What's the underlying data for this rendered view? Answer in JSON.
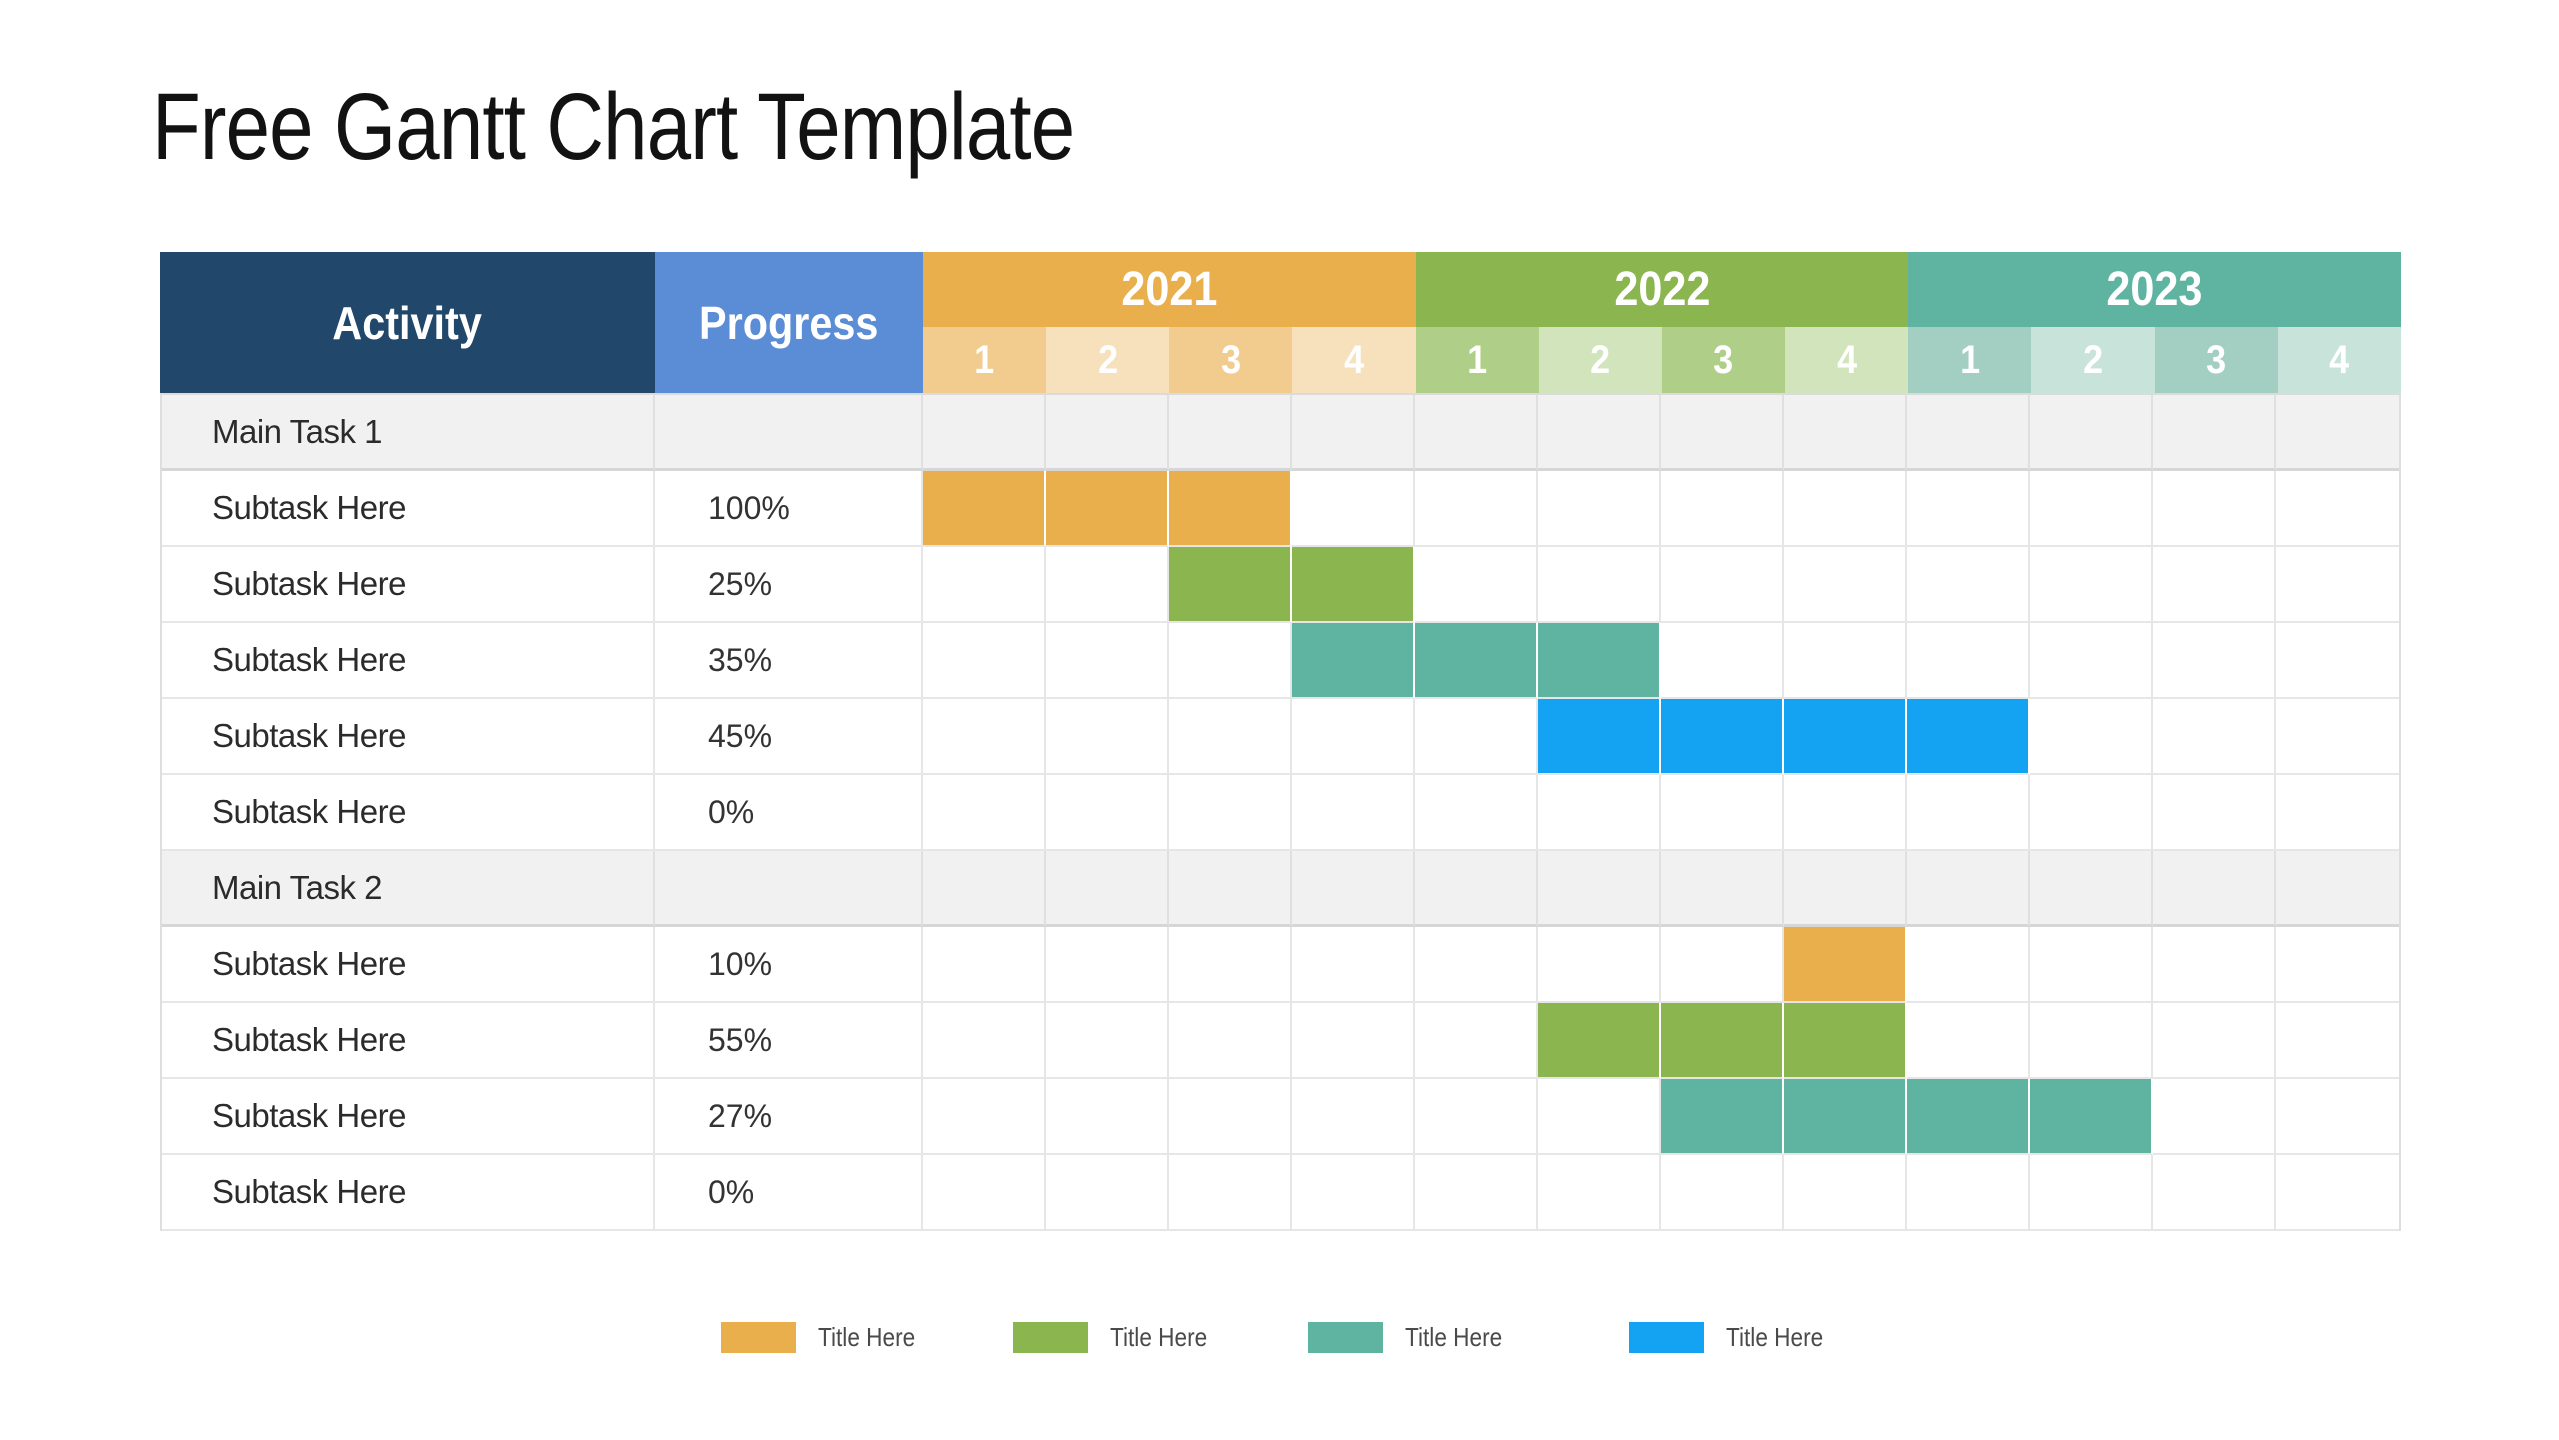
{
  "page": {
    "title": "Free Gantt Chart Template",
    "background": "#FFFFFF"
  },
  "table": {
    "activity_header": "Activity",
    "progress_header": "Progress",
    "years": [
      {
        "label": "2021",
        "color": "#E9AF4C",
        "tint_dark": "#F1CC8E",
        "tint_light": "#F7E1BC",
        "quarters": [
          "1",
          "2",
          "3",
          "4"
        ]
      },
      {
        "label": "2022",
        "color": "#8BB54F",
        "tint_dark": "#AFCE87",
        "tint_light": "#D2E4BB",
        "quarters": [
          "1",
          "2",
          "3",
          "4"
        ]
      },
      {
        "label": "2023",
        "color": "#5EB4A0",
        "tint_dark": "#A2CFC2",
        "tint_light": "#C8E3DA",
        "quarters": [
          "1",
          "2",
          "3",
          "4"
        ]
      }
    ]
  },
  "chart_data": {
    "type": "table",
    "subtype": "gantt",
    "title": "Free Gantt Chart Template",
    "timeline_years": [
      "2021",
      "2022",
      "2023"
    ],
    "quarters_per_year": 4,
    "tasks": [
      {
        "activity": "Main Task 1",
        "progress": "",
        "is_group": true,
        "bar": null
      },
      {
        "activity": "Subtask Here",
        "progress": "100%",
        "is_group": false,
        "bar": {
          "start": "2021 Q1",
          "end": "2021 Q3",
          "color": "orange"
        }
      },
      {
        "activity": "Subtask Here",
        "progress": "25%",
        "is_group": false,
        "bar": {
          "start": "2021 Q3",
          "end": "2021 Q4",
          "color": "green"
        }
      },
      {
        "activity": "Subtask Here",
        "progress": "35%",
        "is_group": false,
        "bar": {
          "start": "2021 Q4",
          "end": "2022 Q2",
          "color": "teal"
        }
      },
      {
        "activity": "Subtask Here",
        "progress": "45%",
        "is_group": false,
        "bar": {
          "start": "2022 Q2",
          "end": "2023 Q1",
          "color": "blue"
        }
      },
      {
        "activity": "Subtask Here",
        "progress": "0%",
        "is_group": false,
        "bar": null
      },
      {
        "activity": "Main Task 2",
        "progress": "",
        "is_group": true,
        "bar": null
      },
      {
        "activity": "Subtask Here",
        "progress": "10%",
        "is_group": false,
        "bar": {
          "start": "2022 Q4",
          "end": "2022 Q4",
          "color": "orange"
        }
      },
      {
        "activity": "Subtask Here",
        "progress": "55%",
        "is_group": false,
        "bar": {
          "start": "2022 Q2",
          "end": "2022 Q4",
          "color": "green"
        }
      },
      {
        "activity": "Subtask Here",
        "progress": "27%",
        "is_group": false,
        "bar": {
          "start": "2022 Q3",
          "end": "2023 Q2",
          "color": "teal"
        }
      },
      {
        "activity": "Subtask Here",
        "progress": "0%",
        "is_group": false,
        "bar": null
      }
    ]
  },
  "legend": {
    "items": [
      {
        "label": "Title Here",
        "color": "orange"
      },
      {
        "label": "Title Here",
        "color": "green"
      },
      {
        "label": "Title Here",
        "color": "teal"
      },
      {
        "label": "Title Here",
        "color": "blue"
      }
    ]
  },
  "colors": {
    "orange": "#E9AF4C",
    "green": "#8BB54F",
    "teal": "#5EB4A0",
    "blue": "#14A3F2",
    "header_navy": "#21476B",
    "header_blue": "#5B8CD6",
    "group_row_bg": "#F1F1F1",
    "grid_line": "#E6E6E6",
    "heavy_line": "#D6D6D6",
    "body_text": "#2B2B2B",
    "legend_text": "#4A4A4A"
  }
}
